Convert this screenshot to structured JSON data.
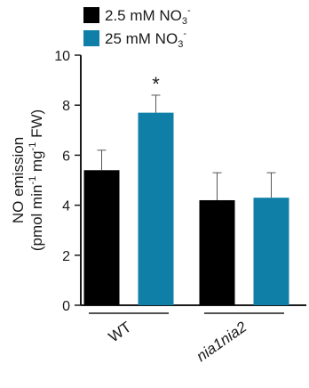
{
  "chart_data": {
    "type": "bar",
    "categories": [
      "WT",
      "nia1nia2"
    ],
    "category_styles": [
      "normal",
      "italic"
    ],
    "series": [
      {
        "name": "2.5 mM NO3-",
        "legend_text": {
          "base": "2.5 mM NO",
          "sub": "3",
          "sup": "-"
        },
        "color": "#000000",
        "values": [
          5.4,
          4.2
        ],
        "errors": [
          0.8,
          1.1
        ]
      },
      {
        "name": "25 mM NO3-",
        "legend_text": {
          "base": "25 mM NO",
          "sub": "3",
          "sup": "-"
        },
        "color": "#0f7fa8",
        "values": [
          7.7,
          4.3
        ],
        "errors": [
          0.7,
          1.0
        ]
      }
    ],
    "annotations": [
      {
        "text": "*",
        "category": 0,
        "series": 1
      }
    ],
    "ylabel_line1": "NO emission",
    "ylabel_line2": {
      "t1": "(pmol min",
      "s1": "-1",
      "t2": " mg",
      "s2": "-1",
      "t3": " FW)"
    },
    "ylim": [
      0,
      10
    ],
    "yticks": [
      0,
      2,
      4,
      6,
      8,
      10
    ],
    "grid": false,
    "legend_position": "top-left"
  }
}
